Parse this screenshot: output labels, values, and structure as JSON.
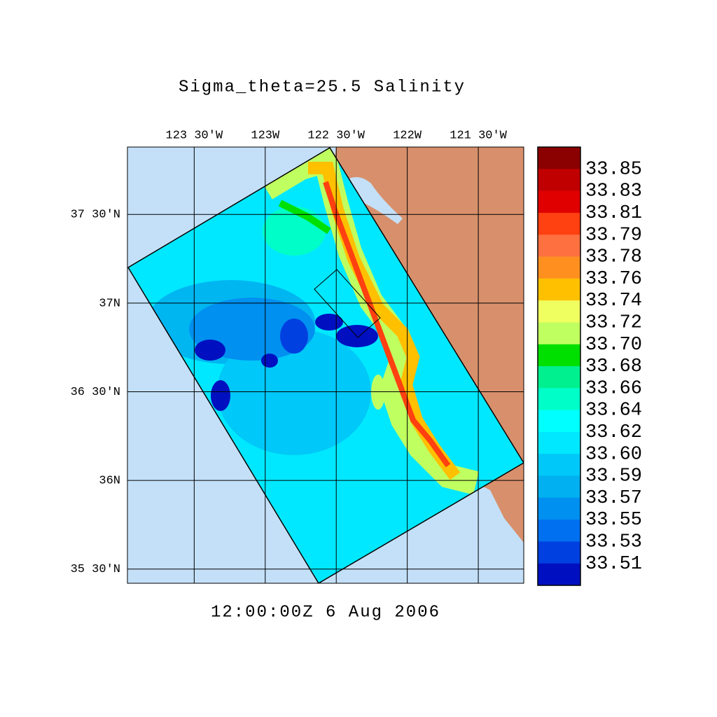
{
  "map": {
    "title": "Sigma_theta=25.5 Salinity",
    "timestamp": "12:00:00Z   6 Aug 2006",
    "xlim": [
      -123.97,
      -121.18
    ],
    "ylim": [
      35.42,
      37.88
    ],
    "xticks": [
      {
        "value": -123.5,
        "label": "123 30'W"
      },
      {
        "value": -123,
        "label": "123W"
      },
      {
        "value": -122.5,
        "label": "122 30'W"
      },
      {
        "value": -122,
        "label": "122W"
      },
      {
        "value": -121.5,
        "label": "121 30'W"
      }
    ],
    "yticks": [
      {
        "value": 37.5,
        "label": "37 30'N"
      },
      {
        "value": 37,
        "label": "37N"
      },
      {
        "value": 36.5,
        "label": "36 30'N"
      },
      {
        "value": 36,
        "label": "36N"
      },
      {
        "value": 35.5,
        "label": "35 30'N"
      }
    ],
    "colorbar": {
      "labels": [
        "33.85",
        "33.83",
        "33.81",
        "33.79",
        "33.78",
        "33.76",
        "33.74",
        "33.72",
        "33.70",
        "33.68",
        "33.66",
        "33.64",
        "33.62",
        "33.60",
        "33.59",
        "33.57",
        "33.55",
        "33.53",
        "33.51"
      ],
      "colors": [
        "#8b0000",
        "#c00000",
        "#e00000",
        "#ff4010",
        "#ff7040",
        "#ff9020",
        "#ffc000",
        "#f0ff60",
        "#c0ff60",
        "#00e000",
        "#00f090",
        "#00ffc8",
        "#00ffff",
        "#00e8ff",
        "#00c8f8",
        "#00b0f0",
        "#0090f0",
        "#0070f0",
        "#0040e0",
        "#0010c0"
      ]
    }
  }
}
